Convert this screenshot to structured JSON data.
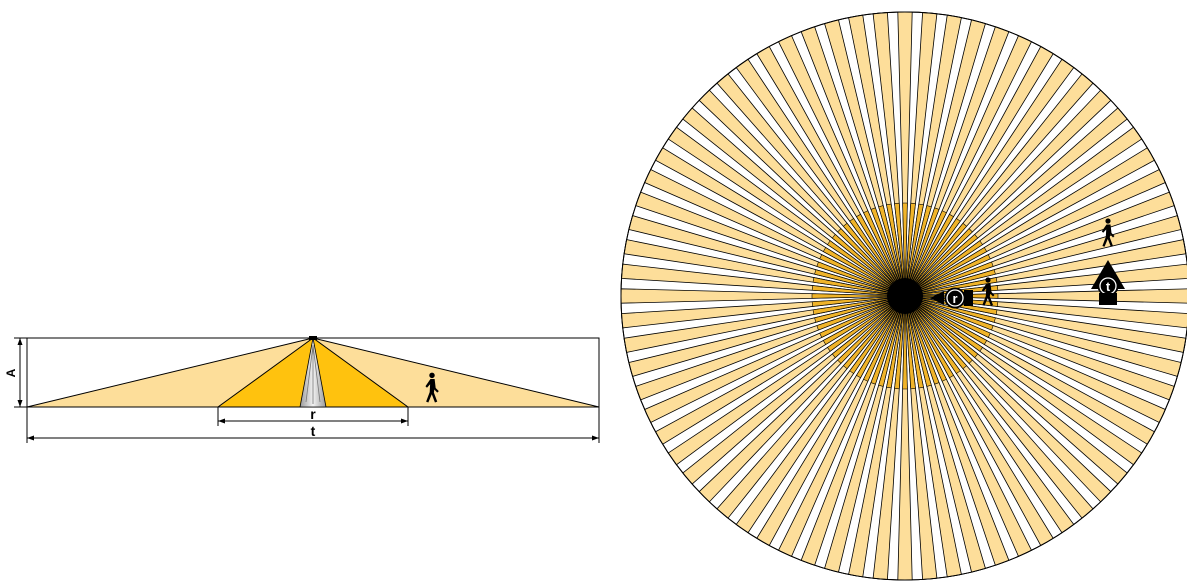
{
  "side_view": {
    "label_height": "A",
    "label_radial": "r",
    "label_tangential": "t"
  },
  "top_view": {
    "label_radial": "r",
    "label_tangential": "t",
    "sector_count": 72
  },
  "colors": {
    "outer_zone": "#FDDE9A",
    "inner_zone": "#FFC20E",
    "inner_zone_top": "#F0B42A",
    "center_cone": "#C8C8C8",
    "outline": "#000000"
  },
  "icons": [
    "walking-person-icon",
    "arrow-up-icon",
    "arrow-left-icon",
    "arrow-right-icon"
  ]
}
